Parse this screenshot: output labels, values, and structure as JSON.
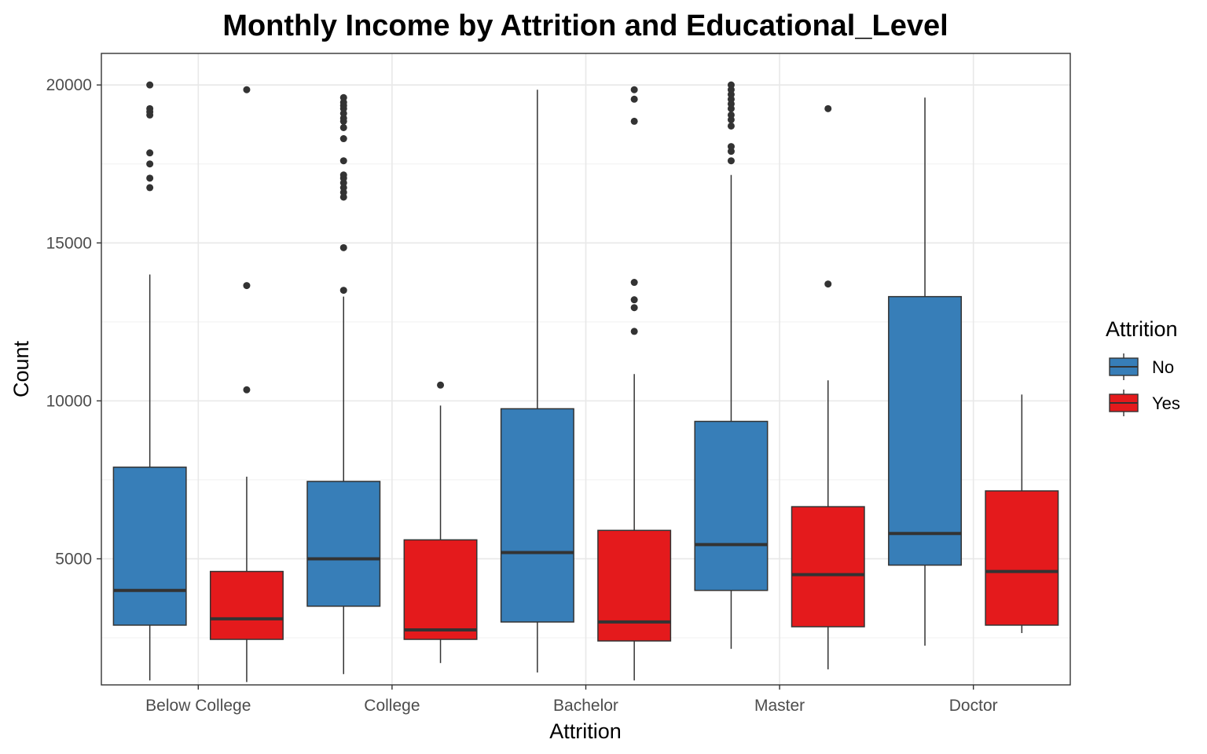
{
  "chart_data": {
    "type": "boxplot",
    "title": "Monthly Income by Attrition and Educational_Level",
    "xlabel": "Attrition",
    "ylabel": "Count",
    "ylim": [
      1009,
      20999
    ],
    "yticks": [
      5000,
      10000,
      15000,
      20000
    ],
    "categories": [
      "Below College",
      "College",
      "Bachelor",
      "Master",
      "Doctor"
    ],
    "grid": true,
    "legend": {
      "title": "Attrition",
      "placement": "right",
      "entries": [
        {
          "name": "No",
          "color": "#377EB8"
        },
        {
          "name": "Yes",
          "color": "#E41A1C"
        }
      ]
    },
    "series": [
      {
        "name": "No",
        "color": "#377EB8",
        "boxes": [
          {
            "category": "Below College",
            "min": 1150,
            "q1": 2900,
            "median": 4000,
            "q3": 7900,
            "max": 14000,
            "outliers": [
              16750,
              17050,
              17500,
              17850,
              19050,
              19150,
              19250,
              20000
            ]
          },
          {
            "category": "College",
            "min": 1350,
            "q1": 3500,
            "median": 5000,
            "q3": 7450,
            "max": 13300,
            "outliers": [
              13500,
              14850,
              16450,
              16600,
              16750,
              16900,
              17050,
              17150,
              17600,
              18300,
              18650,
              18850,
              18950,
              19100,
              19250,
              19350,
              19450,
              19600
            ]
          },
          {
            "category": "Bachelor",
            "min": 1400,
            "q1": 3000,
            "median": 5200,
            "q3": 9750,
            "max": 19850,
            "outliers": []
          },
          {
            "category": "Master",
            "min": 2150,
            "q1": 4000,
            "median": 5450,
            "q3": 9350,
            "max": 17150,
            "outliers": [
              17600,
              17900,
              18050,
              18700,
              18900,
              19050,
              19250,
              19400,
              19550,
              19700,
              19850,
              20000
            ]
          },
          {
            "category": "Doctor",
            "min": 2250,
            "q1": 4800,
            "median": 5800,
            "q3": 13300,
            "max": 19600,
            "outliers": []
          }
        ]
      },
      {
        "name": "Yes",
        "color": "#E41A1C",
        "boxes": [
          {
            "category": "Below College",
            "min": 1100,
            "q1": 2450,
            "median": 3100,
            "q3": 4600,
            "max": 7600,
            "outliers": [
              10350,
              13650,
              19850
            ]
          },
          {
            "category": "College",
            "min": 1700,
            "q1": 2450,
            "median": 2750,
            "q3": 5600,
            "max": 9850,
            "outliers": [
              10500
            ]
          },
          {
            "category": "Bachelor",
            "min": 1150,
            "q1": 2400,
            "median": 3000,
            "q3": 5900,
            "max": 10850,
            "outliers": [
              12200,
              12950,
              13200,
              13750,
              18850,
              19550,
              19850
            ]
          },
          {
            "category": "Master",
            "min": 1500,
            "q1": 2850,
            "median": 4500,
            "q3": 6650,
            "max": 10650,
            "outliers": [
              13700,
              19250
            ]
          },
          {
            "category": "Doctor",
            "min": 2650,
            "q1": 2900,
            "median": 4600,
            "q3": 7150,
            "max": 10200,
            "outliers": []
          }
        ]
      }
    ]
  }
}
